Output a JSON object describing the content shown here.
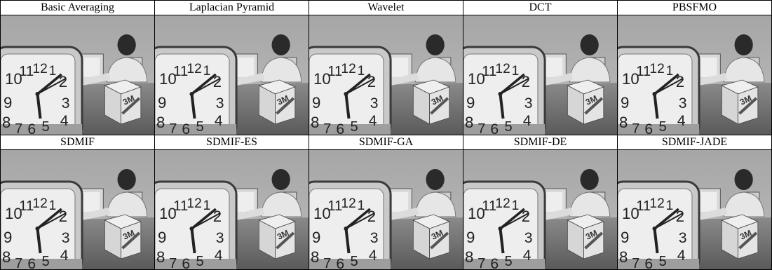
{
  "rows": [
    {
      "captions": [
        "Basic Averaging",
        "Laplacian Pyramid",
        "Wavelet",
        "DCT",
        "PBSFMO"
      ]
    },
    {
      "captions": [
        "SDMIF",
        "SDMIF-ES",
        "SDMIF-GA",
        "SDMIF-DE",
        "SDMIF-JADE"
      ]
    }
  ],
  "clock_numerals": [
    "10",
    "11",
    "12",
    "1",
    "2",
    "9",
    "3",
    "8",
    "7",
    "6",
    "5",
    "4"
  ],
  "box_logo": "3M"
}
